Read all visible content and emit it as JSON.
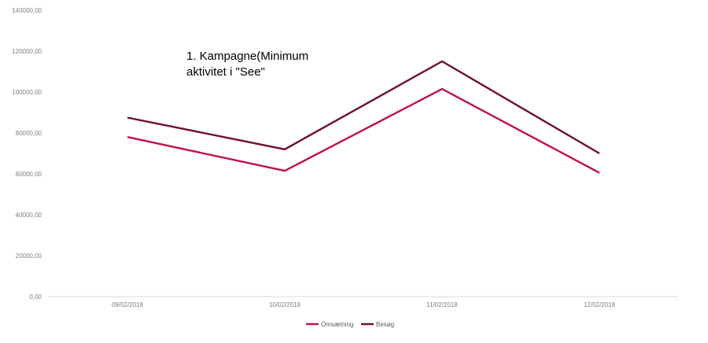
{
  "chart_data": {
    "type": "line",
    "title": "",
    "xlabel": "",
    "ylabel": "",
    "categories": [
      "09/02/2018",
      "10/02/2018",
      "11/02/2018",
      "12/02/2018"
    ],
    "ylim": [
      0,
      140000
    ],
    "y_ticks": [
      "0,00",
      "20000,00",
      "40000,00",
      "60000,00",
      "80000,00",
      "100000,00",
      "120000,00",
      "140000,00"
    ],
    "series": [
      {
        "name": "Omsætning",
        "color": "#c0104f",
        "values": [
          78000,
          61500,
          101500,
          60500
        ]
      },
      {
        "name": "Besøg",
        "color": "#6e0d33",
        "values": [
          87500,
          72000,
          115000,
          70000
        ]
      }
    ],
    "annotation": {
      "line1": "1. Kampagne(Minimum",
      "line2": "aktivitet i \"See\""
    },
    "grid": false,
    "legend": "bottom-center"
  }
}
